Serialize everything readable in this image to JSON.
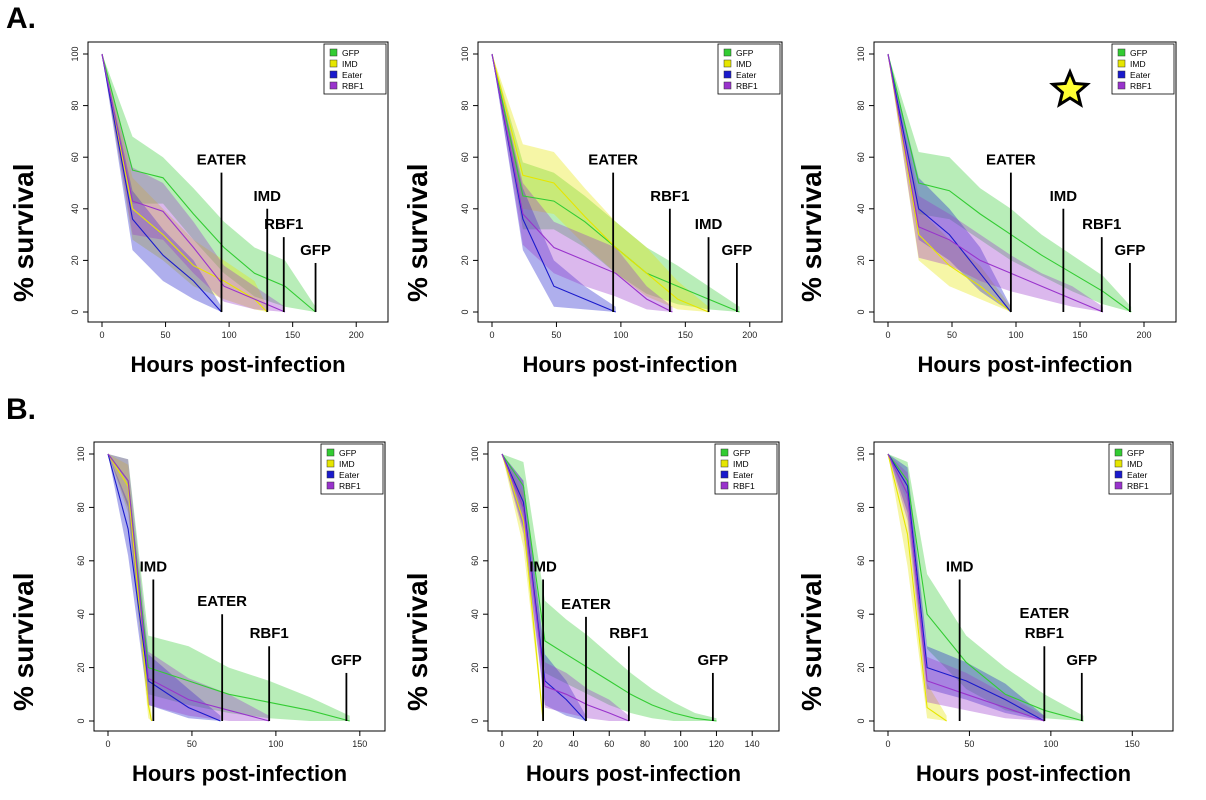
{
  "sections": [
    {
      "label": "A."
    },
    {
      "label": "B."
    }
  ],
  "colors": {
    "GFP": "#33cc33",
    "IMD": "#e6e600",
    "Eater": "#1a1acc",
    "RBF1": "#9933cc"
  },
  "star_color": "#ffff33",
  "chart_data": [
    {
      "type": "line",
      "xlabel": "Hours post-infection",
      "ylabel": "% survival",
      "xlim": [
        0,
        225
      ],
      "ylim": [
        0,
        100
      ],
      "xticks": [
        0,
        50,
        100,
        150,
        200
      ],
      "yticks": [
        0,
        20,
        40,
        60,
        80,
        100
      ],
      "legend": [
        "GFP",
        "IMD",
        "Eater",
        "RBF1"
      ],
      "legend_position": "top-right",
      "series": [
        {
          "name": "GFP",
          "x": [
            0,
            24,
            48,
            72,
            96,
            120,
            144,
            168
          ],
          "y": [
            100,
            55,
            52,
            38,
            25,
            15,
            10,
            0
          ],
          "ci_upper": [
            100,
            68,
            60,
            48,
            35,
            25,
            20,
            2
          ],
          "ci_lower": [
            100,
            42,
            42,
            28,
            15,
            6,
            2,
            0
          ]
        },
        {
          "name": "IMD",
          "x": [
            0,
            24,
            48,
            72,
            96,
            120,
            130
          ],
          "y": [
            100,
            40,
            30,
            18,
            12,
            5,
            0
          ],
          "ci_upper": [
            100,
            52,
            40,
            28,
            20,
            12,
            2
          ],
          "ci_lower": [
            100,
            28,
            20,
            10,
            5,
            1,
            0
          ]
        },
        {
          "name": "Eater",
          "x": [
            0,
            24,
            48,
            72,
            94
          ],
          "y": [
            100,
            36,
            22,
            12,
            0
          ],
          "ci_upper": [
            100,
            47,
            32,
            20,
            2
          ],
          "ci_lower": [
            100,
            24,
            12,
            5,
            0
          ]
        },
        {
          "name": "RBF1",
          "x": [
            0,
            24,
            48,
            72,
            96,
            120,
            144
          ],
          "y": [
            100,
            43,
            39,
            25,
            10,
            5,
            0
          ],
          "ci_upper": [
            100,
            56,
            50,
            35,
            18,
            10,
            2
          ],
          "ci_lower": [
            100,
            30,
            28,
            15,
            4,
            1,
            0
          ]
        }
      ],
      "annotations": [
        {
          "text": "EATER",
          "x": 94,
          "top": 54
        },
        {
          "text": "IMD",
          "x": 130,
          "top": 40
        },
        {
          "text": "RBF1",
          "x": 143,
          "top": 29
        },
        {
          "text": "GFP",
          "x": 168,
          "top": 19
        }
      ]
    },
    {
      "type": "line",
      "xlabel": "Hours post-infection",
      "ylabel": "% survival",
      "xlim": [
        0,
        225
      ],
      "ylim": [
        0,
        100
      ],
      "xticks": [
        0,
        50,
        100,
        150,
        200
      ],
      "yticks": [
        0,
        20,
        40,
        60,
        80,
        100
      ],
      "legend": [
        "GFP",
        "IMD",
        "Eater",
        "RBF1"
      ],
      "legend_position": "top-right",
      "series": [
        {
          "name": "GFP",
          "x": [
            0,
            24,
            48,
            72,
            96,
            120,
            144,
            168,
            192
          ],
          "y": [
            100,
            45,
            43,
            35,
            25,
            15,
            10,
            5,
            0
          ],
          "ci_upper": [
            100,
            58,
            54,
            45,
            35,
            25,
            18,
            10,
            2
          ],
          "ci_lower": [
            100,
            32,
            32,
            25,
            15,
            7,
            3,
            1,
            0
          ]
        },
        {
          "name": "IMD",
          "x": [
            0,
            24,
            48,
            72,
            96,
            120,
            144,
            168
          ],
          "y": [
            100,
            53,
            50,
            37,
            25,
            15,
            5,
            0
          ],
          "ci_upper": [
            100,
            65,
            62,
            48,
            35,
            25,
            12,
            2
          ],
          "ci_lower": [
            100,
            40,
            38,
            26,
            15,
            6,
            1,
            0
          ]
        },
        {
          "name": "Eater",
          "x": [
            0,
            24,
            48,
            72,
            96
          ],
          "y": [
            100,
            36,
            10,
            5,
            0
          ],
          "ci_upper": [
            100,
            48,
            20,
            10,
            2
          ],
          "ci_lower": [
            100,
            24,
            2,
            1,
            0
          ]
        },
        {
          "name": "RBF1",
          "x": [
            0,
            24,
            48,
            72,
            96,
            120,
            140
          ],
          "y": [
            100,
            38,
            25,
            20,
            15,
            5,
            0
          ],
          "ci_upper": [
            100,
            50,
            35,
            30,
            25,
            10,
            2
          ],
          "ci_lower": [
            100,
            26,
            15,
            10,
            6,
            1,
            0
          ]
        }
      ],
      "annotations": [
        {
          "text": "EATER",
          "x": 94,
          "top": 54
        },
        {
          "text": "RBF1",
          "x": 138,
          "top": 40
        },
        {
          "text": "IMD",
          "x": 168,
          "top": 29
        },
        {
          "text": "GFP",
          "x": 190,
          "top": 19
        }
      ]
    },
    {
      "type": "line",
      "xlabel": "Hours post-infection",
      "ylabel": "% survival",
      "xlim": [
        0,
        225
      ],
      "ylim": [
        0,
        100
      ],
      "xticks": [
        0,
        50,
        100,
        150,
        200
      ],
      "yticks": [
        0,
        20,
        40,
        60,
        80,
        100
      ],
      "legend": [
        "GFP",
        "IMD",
        "Eater",
        "RBF1"
      ],
      "legend_position": "top-right",
      "series": [
        {
          "name": "GFP",
          "x": [
            0,
            24,
            48,
            72,
            96,
            120,
            144,
            168,
            190
          ],
          "y": [
            100,
            50,
            47,
            38,
            30,
            22,
            15,
            8,
            0
          ],
          "ci_upper": [
            100,
            62,
            60,
            48,
            40,
            30,
            22,
            14,
            2
          ],
          "ci_lower": [
            100,
            38,
            36,
            28,
            20,
            14,
            8,
            3,
            0
          ]
        },
        {
          "name": "IMD",
          "x": [
            0,
            24,
            48,
            72,
            96
          ],
          "y": [
            100,
            30,
            18,
            10,
            0
          ],
          "ci_upper": [
            100,
            40,
            28,
            18,
            2
          ],
          "ci_lower": [
            100,
            20,
            10,
            5,
            0
          ]
        },
        {
          "name": "Eater",
          "x": [
            0,
            24,
            48,
            72,
            96
          ],
          "y": [
            100,
            40,
            30,
            15,
            0
          ],
          "ci_upper": [
            100,
            52,
            40,
            25,
            2
          ],
          "ci_lower": [
            100,
            28,
            20,
            8,
            0
          ]
        },
        {
          "name": "RBF1",
          "x": [
            0,
            24,
            48,
            72,
            96,
            120,
            144,
            168
          ],
          "y": [
            100,
            33,
            28,
            20,
            15,
            10,
            5,
            0
          ],
          "ci_upper": [
            100,
            45,
            38,
            30,
            22,
            15,
            10,
            2
          ],
          "ci_lower": [
            100,
            21,
            18,
            12,
            8,
            5,
            2,
            0
          ]
        }
      ],
      "annotations": [
        {
          "text": "EATER",
          "x": 96,
          "top": 54
        },
        {
          "text": "IMD",
          "x": 137,
          "top": 40
        },
        {
          "text": "RBF1",
          "x": 167,
          "top": 29
        },
        {
          "text": "GFP",
          "x": 189,
          "top": 19
        }
      ]
    },
    {
      "type": "line",
      "xlabel": "Hours post-infection",
      "ylabel": "% survival",
      "xlim": [
        0,
        165
      ],
      "ylim": [
        0,
        100
      ],
      "xticks": [
        0,
        50,
        100,
        150
      ],
      "yticks": [
        0,
        20,
        40,
        60,
        80,
        100
      ],
      "legend": [
        "GFP",
        "IMD",
        "Eater",
        "RBF1"
      ],
      "legend_position": "top-right",
      "series": [
        {
          "name": "GFP",
          "x": [
            0,
            12,
            24,
            48,
            72,
            96,
            120,
            144
          ],
          "y": [
            100,
            90,
            20,
            15,
            10,
            7,
            4,
            0
          ],
          "ci_upper": [
            100,
            98,
            32,
            28,
            20,
            15,
            9,
            2
          ],
          "ci_lower": [
            100,
            80,
            10,
            6,
            3,
            1,
            0,
            0
          ]
        },
        {
          "name": "IMD",
          "x": [
            0,
            12,
            24,
            26
          ],
          "y": [
            100,
            88,
            6,
            0
          ],
          "ci_upper": [
            100,
            96,
            14,
            2
          ],
          "ci_lower": [
            100,
            78,
            1,
            0
          ]
        },
        {
          "name": "Eater",
          "x": [
            0,
            12,
            24,
            48,
            67
          ],
          "y": [
            100,
            72,
            15,
            5,
            0
          ],
          "ci_upper": [
            100,
            82,
            25,
            12,
            2
          ],
          "ci_lower": [
            100,
            62,
            6,
            1,
            0
          ]
        },
        {
          "name": "RBF1",
          "x": [
            0,
            12,
            24,
            48,
            72,
            96
          ],
          "y": [
            100,
            90,
            16,
            8,
            4,
            0
          ],
          "ci_upper": [
            100,
            98,
            26,
            16,
            10,
            2
          ],
          "ci_lower": [
            100,
            80,
            6,
            2,
            0,
            0
          ]
        }
      ],
      "annotations": [
        {
          "text": "IMD",
          "x": 27,
          "top": 53
        },
        {
          "text": "EATER",
          "x": 68,
          "top": 40
        },
        {
          "text": "RBF1",
          "x": 96,
          "top": 28
        },
        {
          "text": "GFP",
          "x": 142,
          "top": 18
        }
      ]
    },
    {
      "type": "line",
      "xlabel": "Hours post-infection",
      "ylabel": "% survival",
      "xlim": [
        0,
        155
      ],
      "ylim": [
        0,
        100
      ],
      "xticks": [
        0,
        20,
        40,
        60,
        80,
        100,
        120,
        140
      ],
      "yticks": [
        0,
        20,
        40,
        60,
        80,
        100
      ],
      "legend": [
        "GFP",
        "IMD",
        "Eater",
        "RBF1"
      ],
      "legend_position": "top-right",
      "series": [
        {
          "name": "GFP",
          "x": [
            0,
            12,
            24,
            36,
            48,
            60,
            72,
            84,
            96,
            108,
            120
          ],
          "y": [
            100,
            88,
            30,
            25,
            20,
            15,
            10,
            6,
            3,
            1,
            0
          ],
          "ci_upper": [
            100,
            97,
            45,
            38,
            32,
            25,
            18,
            12,
            7,
            3,
            1
          ],
          "ci_lower": [
            100,
            78,
            18,
            14,
            10,
            6,
            3,
            1,
            0,
            0,
            0
          ]
        },
        {
          "name": "IMD",
          "x": [
            0,
            12,
            23
          ],
          "y": [
            100,
            75,
            0
          ],
          "ci_upper": [
            100,
            85,
            2
          ],
          "ci_lower": [
            100,
            65,
            0
          ]
        },
        {
          "name": "Eater",
          "x": [
            0,
            12,
            24,
            36,
            47
          ],
          "y": [
            100,
            82,
            15,
            8,
            0
          ],
          "ci_upper": [
            100,
            90,
            25,
            15,
            2
          ],
          "ci_lower": [
            100,
            72,
            6,
            2,
            0
          ]
        },
        {
          "name": "RBF1",
          "x": [
            0,
            12,
            24,
            36,
            48,
            60,
            71
          ],
          "y": [
            100,
            80,
            13,
            10,
            6,
            3,
            0
          ],
          "ci_upper": [
            100,
            90,
            22,
            18,
            12,
            8,
            2
          ],
          "ci_lower": [
            100,
            70,
            5,
            3,
            1,
            0,
            0
          ]
        }
      ],
      "annotations": [
        {
          "text": "IMD",
          "x": 23,
          "top": 53
        },
        {
          "text": "EATER",
          "x": 47,
          "top": 39
        },
        {
          "text": "RBF1",
          "x": 71,
          "top": 28
        },
        {
          "text": "GFP",
          "x": 118,
          "top": 18
        }
      ]
    },
    {
      "type": "line",
      "xlabel": "Hours post-infection",
      "ylabel": "% survival",
      "xlim": [
        0,
        175
      ],
      "ylim": [
        0,
        100
      ],
      "xticks": [
        0,
        50,
        100,
        150
      ],
      "yticks": [
        0,
        20,
        40,
        60,
        80,
        100
      ],
      "legend": [
        "GFP",
        "IMD",
        "Eater",
        "RBF1"
      ],
      "legend_position": "top-right",
      "series": [
        {
          "name": "GFP",
          "x": [
            0,
            12,
            24,
            48,
            72,
            96,
            120
          ],
          "y": [
            100,
            90,
            40,
            22,
            10,
            4,
            0
          ],
          "ci_upper": [
            100,
            97,
            55,
            32,
            20,
            10,
            2
          ],
          "ci_lower": [
            100,
            82,
            27,
            12,
            4,
            1,
            0
          ]
        },
        {
          "name": "IMD",
          "x": [
            0,
            12,
            24,
            36
          ],
          "y": [
            100,
            70,
            5,
            0
          ],
          "ci_upper": [
            100,
            82,
            14,
            2
          ],
          "ci_lower": [
            100,
            58,
            1,
            0
          ]
        },
        {
          "name": "Eater",
          "x": [
            0,
            12,
            24,
            48,
            72,
            96
          ],
          "y": [
            100,
            88,
            20,
            15,
            8,
            0
          ],
          "ci_upper": [
            100,
            95,
            28,
            22,
            14,
            2
          ],
          "ci_lower": [
            100,
            78,
            12,
            8,
            3,
            0
          ]
        },
        {
          "name": "RBF1",
          "x": [
            0,
            12,
            24,
            48,
            72,
            96
          ],
          "y": [
            100,
            85,
            15,
            10,
            5,
            0
          ],
          "ci_upper": [
            100,
            93,
            24,
            18,
            10,
            2
          ],
          "ci_lower": [
            100,
            75,
            7,
            4,
            1,
            0
          ]
        }
      ],
      "annotations": [
        {
          "text": "IMD",
          "x": 44,
          "top": 53
        },
        {
          "text": "EATER",
          "x": 96,
          "top": 28,
          "extra": "RBF1"
        },
        {
          "text": "GFP",
          "x": 119,
          "top": 18
        }
      ]
    }
  ]
}
